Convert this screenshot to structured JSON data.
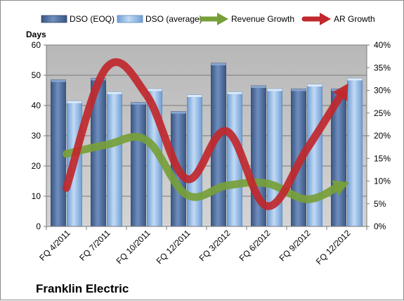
{
  "chart_data": {
    "type": "bar",
    "categories": [
      "FQ 4/2011",
      "FQ 7/2011",
      "FQ 10/2011",
      "FQ 12/2011",
      "FQ 3/2012",
      "FQ 6/2012",
      "FQ 9/2012",
      "FQ 12/2012"
    ],
    "series": [
      {
        "name": "DSO (EOQ)",
        "type": "bar",
        "axis": "left",
        "color": "#4f6f9f",
        "values": [
          48.5,
          49,
          41,
          38,
          54,
          46.5,
          45.5,
          45.5
        ]
      },
      {
        "name": "DSO (average)",
        "type": "bar",
        "axis": "left",
        "color": "#8db3e2",
        "values": [
          41.5,
          44.5,
          45.5,
          43.5,
          44.5,
          45.5,
          47,
          49
        ]
      },
      {
        "name": "Revenue Growth",
        "type": "line",
        "axis": "right",
        "color": "#77a03a",
        "values": [
          16,
          18,
          19,
          7,
          9,
          9.5,
          6,
          9.5
        ]
      },
      {
        "name": "AR Growth",
        "type": "line",
        "axis": "right",
        "color": "#c0282d",
        "values": [
          8.5,
          35,
          29,
          10.5,
          21,
          4.5,
          17,
          31
        ]
      }
    ],
    "ylabel": "Days",
    "ylim": [
      0,
      60
    ],
    "yticks": [
      "0",
      "10",
      "20",
      "30",
      "40",
      "50",
      "60"
    ],
    "y2lim": [
      0,
      40
    ],
    "y2ticks": [
      "0%",
      "5%",
      "10%",
      "15%",
      "20%",
      "25%",
      "30%",
      "35%",
      "40%"
    ],
    "legend_position": "top",
    "grid": true
  },
  "company": "Franklin Electric"
}
